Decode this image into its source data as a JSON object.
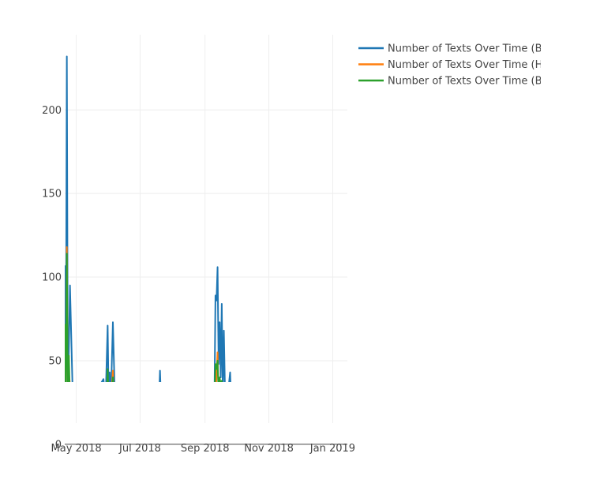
{
  "chart_data": {
    "type": "line",
    "title": "",
    "xlabel": "",
    "ylabel": "",
    "x_ticks": [
      "May 2018",
      "Jul 2018",
      "Sep 2018",
      "Nov 2018",
      "Jan 2019"
    ],
    "x_tick_dates": [
      "2018-05-01",
      "2018-07-01",
      "2018-09-01",
      "2018-11-01",
      "2019-01-01"
    ],
    "xlim": [
      "2018-04-20",
      "2019-01-15"
    ],
    "y_ticks": [
      0,
      50,
      100,
      150,
      200
    ],
    "ylim": [
      -10,
      245
    ],
    "grid": true,
    "legend_position": "right",
    "series": [
      {
        "name": "Number of Texts Over Time (B",
        "color": "#1f77b4",
        "points": [
          [
            "2018-04-20",
            107
          ],
          [
            "2018-04-21",
            27
          ],
          [
            "2018-04-22",
            232
          ],
          [
            "2018-04-23",
            24
          ],
          [
            "2018-04-24",
            58
          ],
          [
            "2018-04-25",
            95
          ],
          [
            "2018-04-28",
            20
          ],
          [
            "2018-05-14",
            25
          ],
          [
            "2018-05-27",
            39
          ],
          [
            "2018-05-29",
            25
          ],
          [
            "2018-05-31",
            71
          ],
          [
            "2018-06-01",
            25
          ],
          [
            "2018-06-02",
            43
          ],
          [
            "2018-06-03",
            25
          ],
          [
            "2018-06-05",
            73
          ],
          [
            "2018-06-07",
            25
          ],
          [
            "2018-07-19",
            25
          ],
          [
            "2018-07-20",
            44
          ],
          [
            "2018-07-21",
            25
          ],
          [
            "2018-09-10",
            25
          ],
          [
            "2018-09-11",
            89
          ],
          [
            "2018-09-12",
            86
          ],
          [
            "2018-09-13",
            106
          ],
          [
            "2018-09-14",
            48
          ],
          [
            "2018-09-15",
            73
          ],
          [
            "2018-09-16",
            40
          ],
          [
            "2018-09-17",
            84
          ],
          [
            "2018-09-18",
            30
          ],
          [
            "2018-09-19",
            68
          ],
          [
            "2018-09-20",
            35
          ],
          [
            "2018-09-22",
            25
          ],
          [
            "2018-09-25",
            43
          ],
          [
            "2018-09-26",
            25
          ],
          [
            "2018-09-27",
            35
          ]
        ]
      },
      {
        "name": "Number of Texts Over Time (H",
        "color": "#ff7f0e",
        "points": [
          [
            "2018-04-20",
            59
          ],
          [
            "2018-04-21",
            25
          ],
          [
            "2018-04-22",
            118
          ],
          [
            "2018-04-23",
            25
          ],
          [
            "2018-04-24",
            42
          ],
          [
            "2018-04-25",
            36
          ],
          [
            "2018-04-26",
            25
          ],
          [
            "2018-06-03",
            25
          ],
          [
            "2018-06-05",
            44
          ],
          [
            "2018-06-06",
            25
          ],
          [
            "2018-09-11",
            25
          ],
          [
            "2018-09-12",
            42
          ],
          [
            "2018-09-13",
            55
          ],
          [
            "2018-09-14",
            25
          ],
          [
            "2018-09-15",
            38
          ],
          [
            "2018-09-16",
            25
          ]
        ]
      },
      {
        "name": "Number of Texts Over Time (B",
        "color": "#2ca02c",
        "points": [
          [
            "2018-04-20",
            72
          ],
          [
            "2018-04-21",
            25
          ],
          [
            "2018-04-22",
            114
          ],
          [
            "2018-04-23",
            25
          ],
          [
            "2018-04-24",
            53
          ],
          [
            "2018-04-25",
            25
          ],
          [
            "2018-04-27",
            25
          ],
          [
            "2018-05-30",
            25
          ],
          [
            "2018-05-31",
            45
          ],
          [
            "2018-06-01",
            25
          ],
          [
            "2018-06-04",
            25
          ],
          [
            "2018-06-05",
            40
          ],
          [
            "2018-06-06",
            25
          ],
          [
            "2018-09-10",
            25
          ],
          [
            "2018-09-11",
            48
          ],
          [
            "2018-09-12",
            45
          ],
          [
            "2018-09-13",
            50
          ],
          [
            "2018-09-14",
            30
          ],
          [
            "2018-09-15",
            40
          ],
          [
            "2018-09-16",
            35
          ],
          [
            "2018-09-17",
            38
          ],
          [
            "2018-09-18",
            25
          ],
          [
            "2018-09-19",
            36
          ],
          [
            "2018-09-20",
            25
          ]
        ]
      }
    ]
  }
}
